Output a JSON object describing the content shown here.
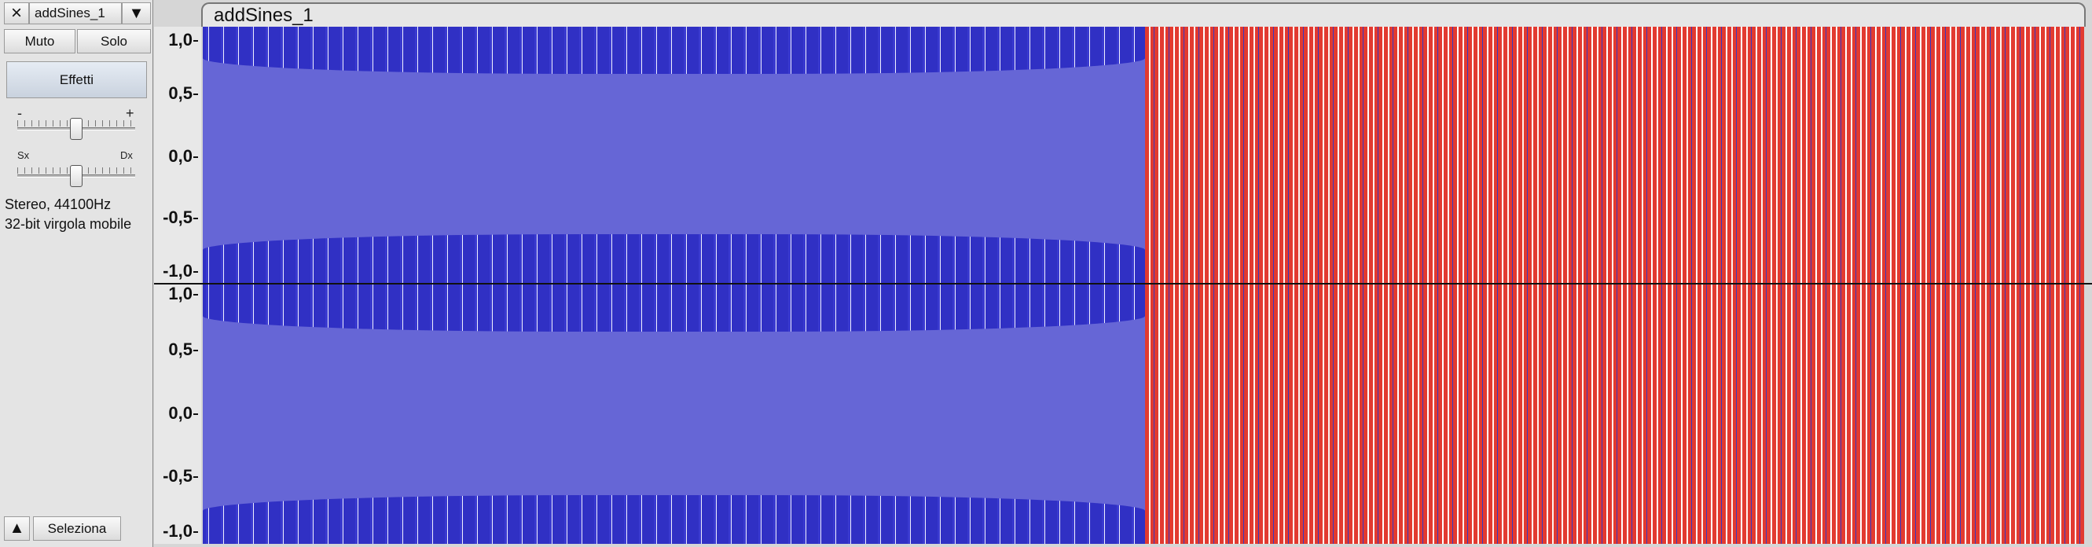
{
  "track_panel": {
    "close": "×",
    "name": "addSines_1",
    "menu": "▼",
    "mute": "Muto",
    "solo": "Solo",
    "effects": "Effetti",
    "gain_min": "-",
    "gain_max": "+",
    "pan_left": "Sx",
    "pan_right": "Dx",
    "info": [
      "Stereo, 44100Hz",
      "32-bit virgola mobile"
    ],
    "collapse": "▲",
    "select": "Seleziona"
  },
  "clip": {
    "title": "addSines_1"
  },
  "rulers": [
    [
      "1,0",
      "0,5",
      "0,0",
      "-0,5",
      "-1,0"
    ],
    [
      "1,0",
      "0,5",
      "0,0",
      "-0,5",
      "-1,0"
    ]
  ]
}
